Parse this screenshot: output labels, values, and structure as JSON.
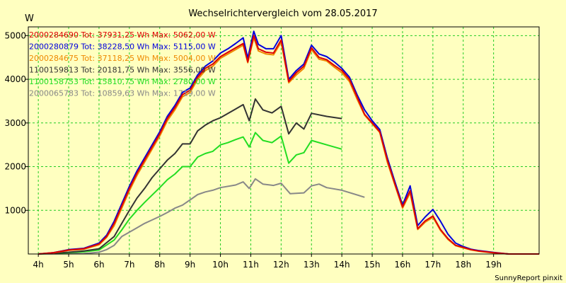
{
  "chart_data": {
    "type": "line",
    "title": "Wechselrichtervergleich vom 28.05.2017",
    "ylabel": "W",
    "credit": "SunnyReport pinxit",
    "xlim": [
      3.67,
      20.5
    ],
    "ylim": [
      0,
      5200
    ],
    "x_ticks": [
      4,
      5,
      6,
      7,
      8,
      9,
      10,
      11,
      12,
      13,
      14,
      15,
      16,
      17,
      18,
      19
    ],
    "x_tick_labels": [
      "4h",
      "5h",
      "6h",
      "7h",
      "8h",
      "9h",
      "10h",
      "11h",
      "12h",
      "13h",
      "14h",
      "15h",
      "16h",
      "17h",
      "18h",
      "19h"
    ],
    "y_ticks": [
      1000,
      2000,
      3000,
      4000,
      5000
    ],
    "y_tick_labels": [
      "1000",
      "2000",
      "3000",
      "4000",
      "5000"
    ],
    "grid": true,
    "legend_position": "top-left",
    "series": [
      {
        "name": "2000284690 Tot: 37931,25 Wh Max: 5062,00 W",
        "color": "#dd0000",
        "points": [
          [
            4,
            0
          ],
          [
            4.5,
            30
          ],
          [
            5,
            90
          ],
          [
            5.5,
            120
          ],
          [
            6,
            230
          ],
          [
            6.25,
            400
          ],
          [
            6.5,
            700
          ],
          [
            6.75,
            1100
          ],
          [
            7,
            1500
          ],
          [
            7.25,
            1850
          ],
          [
            7.5,
            2150
          ],
          [
            7.75,
            2450
          ],
          [
            8,
            2750
          ],
          [
            8.25,
            3100
          ],
          [
            8.5,
            3350
          ],
          [
            8.75,
            3650
          ],
          [
            9,
            3750
          ],
          [
            9.25,
            4050
          ],
          [
            9.5,
            4250
          ],
          [
            9.75,
            4350
          ],
          [
            10,
            4520
          ],
          [
            10.25,
            4620
          ],
          [
            10.5,
            4720
          ],
          [
            10.75,
            4820
          ],
          [
            10.9,
            4400
          ],
          [
            11.1,
            5000
          ],
          [
            11.25,
            4700
          ],
          [
            11.5,
            4620
          ],
          [
            11.75,
            4600
          ],
          [
            12,
            4900
          ],
          [
            12.25,
            3950
          ],
          [
            12.5,
            4150
          ],
          [
            12.75,
            4300
          ],
          [
            13,
            4720
          ],
          [
            13.25,
            4500
          ],
          [
            13.5,
            4450
          ],
          [
            13.75,
            4320
          ],
          [
            14,
            4200
          ],
          [
            14.25,
            4000
          ],
          [
            14.5,
            3600
          ],
          [
            14.75,
            3200
          ],
          [
            15,
            3000
          ],
          [
            15.25,
            2800
          ],
          [
            15.5,
            2150
          ],
          [
            15.75,
            1600
          ],
          [
            16,
            1080
          ],
          [
            16.25,
            1450
          ],
          [
            16.5,
            580
          ],
          [
            16.75,
            760
          ],
          [
            17,
            870
          ],
          [
            17.25,
            560
          ],
          [
            17.5,
            350
          ],
          [
            17.75,
            200
          ],
          [
            18,
            150
          ],
          [
            18.25,
            100
          ],
          [
            18.5,
            70
          ],
          [
            19,
            30
          ],
          [
            19.5,
            0
          ],
          [
            20.5,
            0
          ]
        ]
      },
      {
        "name": "2000280879 Tot: 38228,50 Wh Max: 5115,00 W",
        "color": "#0000dd",
        "points": [
          [
            4,
            0
          ],
          [
            4.5,
            30
          ],
          [
            5,
            100
          ],
          [
            5.5,
            130
          ],
          [
            6,
            250
          ],
          [
            6.25,
            430
          ],
          [
            6.5,
            750
          ],
          [
            6.75,
            1150
          ],
          [
            7,
            1550
          ],
          [
            7.25,
            1900
          ],
          [
            7.5,
            2200
          ],
          [
            7.75,
            2500
          ],
          [
            8,
            2800
          ],
          [
            8.25,
            3150
          ],
          [
            8.5,
            3400
          ],
          [
            8.75,
            3700
          ],
          [
            9,
            3800
          ],
          [
            9.25,
            4100
          ],
          [
            9.5,
            4300
          ],
          [
            9.75,
            4420
          ],
          [
            10,
            4600
          ],
          [
            10.25,
            4700
          ],
          [
            10.5,
            4820
          ],
          [
            10.75,
            4950
          ],
          [
            10.9,
            4480
          ],
          [
            11.1,
            5100
          ],
          [
            11.25,
            4800
          ],
          [
            11.5,
            4700
          ],
          [
            11.75,
            4700
          ],
          [
            12,
            5000
          ],
          [
            12.25,
            4000
          ],
          [
            12.5,
            4200
          ],
          [
            12.75,
            4350
          ],
          [
            13,
            4780
          ],
          [
            13.25,
            4580
          ],
          [
            13.5,
            4520
          ],
          [
            13.75,
            4400
          ],
          [
            14,
            4250
          ],
          [
            14.25,
            4050
          ],
          [
            14.5,
            3650
          ],
          [
            14.75,
            3300
          ],
          [
            15,
            3050
          ],
          [
            15.25,
            2850
          ],
          [
            15.5,
            2200
          ],
          [
            15.75,
            1650
          ],
          [
            16,
            1120
          ],
          [
            16.25,
            1560
          ],
          [
            16.5,
            650
          ],
          [
            16.75,
            850
          ],
          [
            17,
            1020
          ],
          [
            17.25,
            750
          ],
          [
            17.5,
            450
          ],
          [
            17.75,
            250
          ],
          [
            18,
            170
          ],
          [
            18.25,
            110
          ],
          [
            18.5,
            80
          ],
          [
            19,
            35
          ],
          [
            19.5,
            0
          ],
          [
            20.5,
            0
          ]
        ]
      },
      {
        "name": "2000284675 Tot: 37118,25 Wh Max: 5004,00 W",
        "color": "#ee8800",
        "points": [
          [
            4,
            0
          ],
          [
            4.5,
            25
          ],
          [
            5,
            85
          ],
          [
            5.5,
            110
          ],
          [
            6,
            210
          ],
          [
            6.25,
            380
          ],
          [
            6.5,
            650
          ],
          [
            6.75,
            1050
          ],
          [
            7,
            1450
          ],
          [
            7.25,
            1800
          ],
          [
            7.5,
            2100
          ],
          [
            7.75,
            2400
          ],
          [
            8,
            2700
          ],
          [
            8.25,
            3050
          ],
          [
            8.5,
            3300
          ],
          [
            8.75,
            3600
          ],
          [
            9,
            3700
          ],
          [
            9.25,
            4000
          ],
          [
            9.5,
            4200
          ],
          [
            9.75,
            4300
          ],
          [
            10,
            4480
          ],
          [
            10.25,
            4580
          ],
          [
            10.5,
            4680
          ],
          [
            10.75,
            4780
          ],
          [
            10.9,
            4380
          ],
          [
            11.1,
            4950
          ],
          [
            11.25,
            4650
          ],
          [
            11.5,
            4580
          ],
          [
            11.75,
            4560
          ],
          [
            12,
            4850
          ],
          [
            12.25,
            3920
          ],
          [
            12.5,
            4100
          ],
          [
            12.75,
            4250
          ],
          [
            13,
            4680
          ],
          [
            13.25,
            4460
          ],
          [
            13.5,
            4420
          ],
          [
            13.75,
            4280
          ],
          [
            14,
            4150
          ],
          [
            14.25,
            3950
          ],
          [
            14.5,
            3550
          ],
          [
            14.75,
            3180
          ],
          [
            15,
            2980
          ],
          [
            15.25,
            2780
          ],
          [
            15.5,
            2100
          ],
          [
            15.75,
            1580
          ],
          [
            16,
            1050
          ],
          [
            16.25,
            1400
          ],
          [
            16.5,
            560
          ],
          [
            16.75,
            730
          ],
          [
            17,
            840
          ],
          [
            17.25,
            540
          ],
          [
            17.5,
            330
          ],
          [
            17.75,
            190
          ],
          [
            18,
            140
          ],
          [
            18.25,
            95
          ],
          [
            18.5,
            65
          ],
          [
            19,
            25
          ],
          [
            19.5,
            0
          ],
          [
            20.5,
            0
          ]
        ]
      },
      {
        "name": "1100159813 Tot: 20181,75 Wh Max: 3556,00 W",
        "color": "#333333",
        "points": [
          [
            4,
            0
          ],
          [
            5,
            40
          ],
          [
            5.5,
            70
          ],
          [
            6,
            120
          ],
          [
            6.5,
            400
          ],
          [
            6.75,
            700
          ],
          [
            7,
            1000
          ],
          [
            7.25,
            1280
          ],
          [
            7.5,
            1500
          ],
          [
            7.75,
            1750
          ],
          [
            8,
            1950
          ],
          [
            8.25,
            2150
          ],
          [
            8.5,
            2300
          ],
          [
            8.75,
            2520
          ],
          [
            9,
            2520
          ],
          [
            9.25,
            2820
          ],
          [
            9.5,
            2950
          ],
          [
            9.75,
            3050
          ],
          [
            10,
            3120
          ],
          [
            10.25,
            3220
          ],
          [
            10.5,
            3320
          ],
          [
            10.75,
            3420
          ],
          [
            10.95,
            3050
          ],
          [
            11.15,
            3550
          ],
          [
            11.4,
            3300
          ],
          [
            11.7,
            3230
          ],
          [
            12,
            3380
          ],
          [
            12.25,
            2750
          ],
          [
            12.5,
            3000
          ],
          [
            12.75,
            2860
          ],
          [
            13,
            3220
          ],
          [
            13.5,
            3150
          ],
          [
            14,
            3100
          ]
        ]
      },
      {
        "name": "1100158753 Tot: 15810,75 Wh Max: 2780,00 W",
        "color": "#22dd22",
        "points": [
          [
            4,
            0
          ],
          [
            5,
            30
          ],
          [
            5.5,
            50
          ],
          [
            6,
            90
          ],
          [
            6.5,
            320
          ],
          [
            6.75,
            550
          ],
          [
            7,
            800
          ],
          [
            7.25,
            1000
          ],
          [
            7.5,
            1180
          ],
          [
            7.75,
            1350
          ],
          [
            8,
            1520
          ],
          [
            8.25,
            1700
          ],
          [
            8.5,
            1830
          ],
          [
            8.75,
            2000
          ],
          [
            9,
            2000
          ],
          [
            9.25,
            2220
          ],
          [
            9.5,
            2300
          ],
          [
            9.75,
            2350
          ],
          [
            10,
            2500
          ],
          [
            10.25,
            2550
          ],
          [
            10.5,
            2620
          ],
          [
            10.75,
            2680
          ],
          [
            10.95,
            2450
          ],
          [
            11.15,
            2780
          ],
          [
            11.4,
            2600
          ],
          [
            11.7,
            2550
          ],
          [
            12,
            2700
          ],
          [
            12.25,
            2080
          ],
          [
            12.5,
            2270
          ],
          [
            12.75,
            2320
          ],
          [
            13,
            2600
          ],
          [
            13.5,
            2500
          ],
          [
            14,
            2400
          ]
        ]
      },
      {
        "name": "2000065783 Tot: 10859,63 Wh Max: 1719,00 W",
        "color": "#888888",
        "points": [
          [
            4,
            0
          ],
          [
            5.5,
            10
          ],
          [
            6,
            40
          ],
          [
            6.25,
            100
          ],
          [
            6.5,
            200
          ],
          [
            6.75,
            400
          ],
          [
            7,
            500
          ],
          [
            7.25,
            600
          ],
          [
            7.5,
            700
          ],
          [
            7.75,
            780
          ],
          [
            8,
            860
          ],
          [
            8.25,
            950
          ],
          [
            8.5,
            1050
          ],
          [
            8.75,
            1120
          ],
          [
            9,
            1240
          ],
          [
            9.25,
            1360
          ],
          [
            9.5,
            1420
          ],
          [
            9.75,
            1460
          ],
          [
            10,
            1520
          ],
          [
            10.5,
            1580
          ],
          [
            10.75,
            1650
          ],
          [
            10.95,
            1500
          ],
          [
            11.15,
            1720
          ],
          [
            11.4,
            1600
          ],
          [
            11.75,
            1570
          ],
          [
            12,
            1620
          ],
          [
            12.3,
            1380
          ],
          [
            12.75,
            1400
          ],
          [
            13,
            1560
          ],
          [
            13.25,
            1600
          ],
          [
            13.5,
            1520
          ],
          [
            14,
            1460
          ],
          [
            14.75,
            1300
          ]
        ]
      }
    ]
  }
}
